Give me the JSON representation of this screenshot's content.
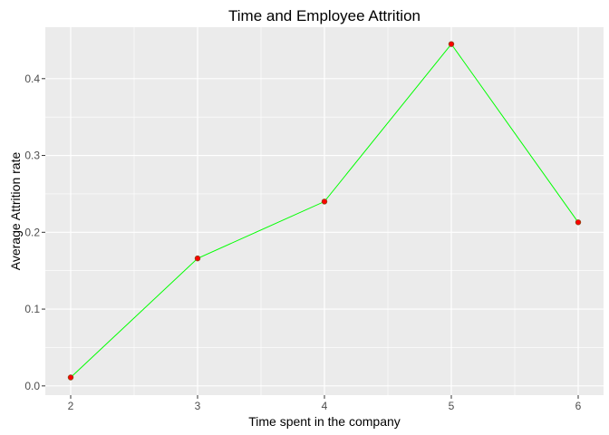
{
  "chart_data": {
    "type": "line",
    "title": "Time and Employee Attrition",
    "xlabel": "Time spent in the company",
    "ylabel": "Average Attrition rate",
    "x": [
      2,
      3,
      4,
      5,
      6
    ],
    "y": [
      0.011,
      0.166,
      0.24,
      0.445,
      0.213
    ],
    "xlim": [
      1.8,
      6.2
    ],
    "ylim": [
      -0.012,
      0.467
    ],
    "x_ticks": [
      2,
      3,
      4,
      5,
      6
    ],
    "x_tick_labels": [
      "2",
      "3",
      "4",
      "5",
      "6"
    ],
    "y_ticks": [
      0.0,
      0.1,
      0.2,
      0.3,
      0.4
    ],
    "y_tick_labels": [
      "0.0",
      "0.1",
      "0.2",
      "0.3",
      "0.4"
    ],
    "grid": true,
    "line_color": "#00ff00",
    "point_fill": "#ff0000",
    "point_stroke": "#8b4513",
    "panel_background": "#ebebeb",
    "grid_color": "#ffffff"
  }
}
